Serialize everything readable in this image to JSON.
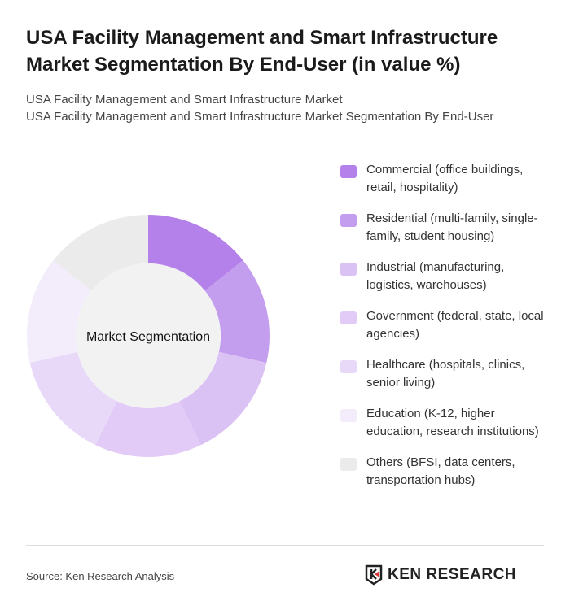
{
  "title": "USA Facility Management and Smart Infrastructure Market Segmentation By End-User (in value %)",
  "subtitle1": "USA Facility Management and Smart Infrastructure Market",
  "subtitle2": "USA Facility Management and Smart Infrastructure Market Segmentation By End-User",
  "source": "Source: Ken Research Analysis",
  "logo_text": "KEN RESEARCH",
  "chart_data": {
    "type": "pie",
    "donut": true,
    "center_label": "Market Segmentation",
    "legend_position": "right",
    "categories": [
      "Commercial (office buildings, retail, hospitality)",
      "Residential (multi-family, single-family, student housing)",
      "Industrial (manufacturing, logistics, warehouses)",
      "Government (federal, state, local agencies)",
      "Healthcare (hospitals, clinics, senior living)",
      "Education (K-12, higher education, research institutions)",
      "Others (BFSI, data centers, transportation hubs)"
    ],
    "values": [
      14.3,
      14.3,
      14.3,
      14.3,
      14.3,
      14.3,
      14.3
    ],
    "colors": [
      "#b480ea",
      "#c49eee",
      "#dbc2f5",
      "#e2cbf7",
      "#e9d9f9",
      "#f3ecfb",
      "#ebebeb"
    ]
  }
}
